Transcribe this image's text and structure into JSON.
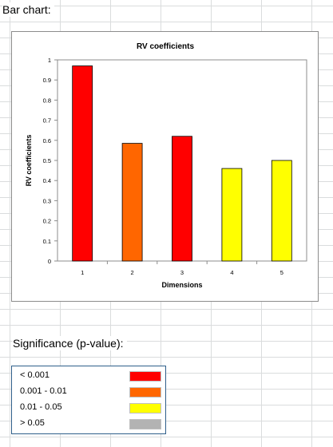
{
  "sheet": {
    "bar_chart_label": "Bar chart:",
    "significance_label": "Significance (p-value):"
  },
  "chart_data": {
    "type": "bar",
    "title": "RV coefficients",
    "xlabel": "Dimensions",
    "ylabel": "RV coefficients",
    "categories": [
      "1",
      "2",
      "3",
      "4",
      "5"
    ],
    "values": [
      0.97,
      0.585,
      0.62,
      0.46,
      0.5
    ],
    "bar_colors": [
      "#ff0000",
      "#ff6600",
      "#ff0000",
      "#ffff00",
      "#ffff00"
    ],
    "ylim": [
      0,
      1
    ],
    "yticks": [
      "0",
      "0.1",
      "0.2",
      "0.3",
      "0.4",
      "0.5",
      "0.6",
      "0.7",
      "0.8",
      "0.9",
      "1"
    ],
    "grid": false,
    "legend": "none"
  },
  "legend": {
    "items": [
      {
        "label": "< 0.001",
        "color": "#ff0000"
      },
      {
        "label": "0.001 - 0.01",
        "color": "#ff6600"
      },
      {
        "label": "0.01 - 0.05",
        "color": "#ffff00"
      },
      {
        "label": "> 0.05",
        "color": "#b3b3b3"
      }
    ]
  }
}
